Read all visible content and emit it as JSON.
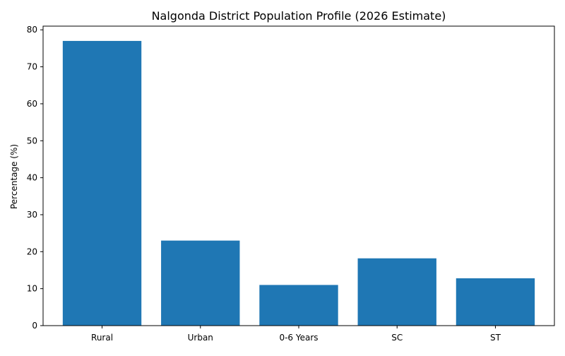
{
  "chart_data": {
    "type": "bar",
    "title": "Nalgonda District Population Profile (2026 Estimate)",
    "xlabel": "",
    "ylabel": "Percentage (%)",
    "categories": [
      "Rural",
      "Urban",
      "0-6 Years",
      "SC",
      "ST"
    ],
    "values": [
      77.0,
      23.0,
      11.0,
      18.2,
      12.8
    ],
    "ylim": [
      0,
      81
    ],
    "yticks": [
      0,
      10,
      20,
      30,
      40,
      50,
      60,
      70,
      80
    ],
    "grid": false,
    "legend": "none",
    "bar_color": "#1f77b4"
  }
}
